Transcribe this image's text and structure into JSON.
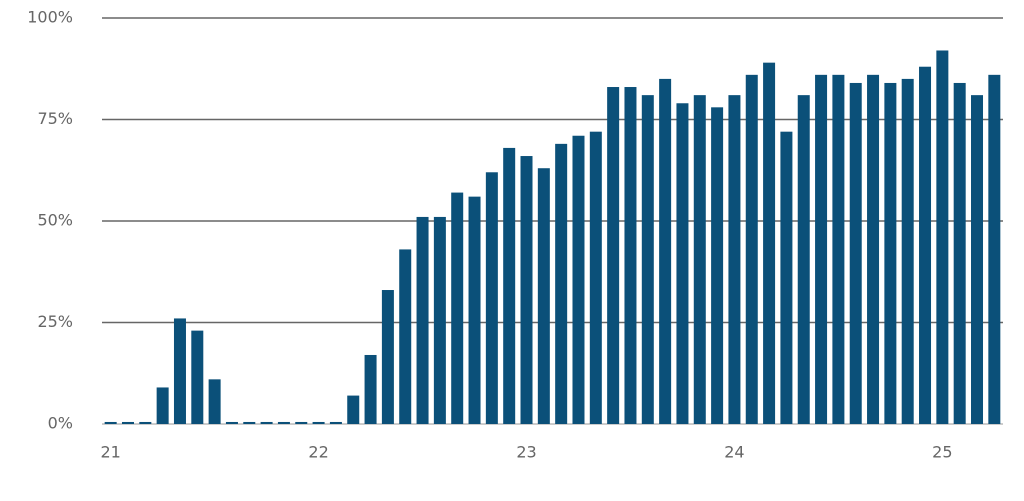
{
  "chart_data": {
    "type": "bar",
    "categories": [
      "21",
      null,
      null,
      null,
      null,
      null,
      null,
      null,
      null,
      null,
      null,
      null,
      "22",
      null,
      null,
      null,
      null,
      null,
      null,
      null,
      null,
      null,
      null,
      null,
      "23",
      null,
      null,
      null,
      null,
      null,
      null,
      null,
      null,
      null,
      null,
      null,
      "24",
      null,
      null,
      null,
      null,
      null,
      null,
      null,
      null,
      null,
      null,
      null,
      "25",
      null,
      null,
      null
    ],
    "values": [
      0.5,
      0.5,
      0.5,
      9,
      26,
      23,
      11,
      0.5,
      0.5,
      0.5,
      0.5,
      0.5,
      0.5,
      0.5,
      7,
      17,
      33,
      43,
      51,
      51,
      57,
      56,
      62,
      68,
      66,
      63,
      69,
      71,
      72,
      83,
      83,
      81,
      85,
      79,
      81,
      78,
      81,
      86,
      89,
      72,
      81,
      86,
      86,
      84,
      86,
      84,
      85,
      88,
      92,
      84,
      81,
      86
    ],
    "color": "#0b5079",
    "ylim": [
      0,
      100
    ],
    "yticks": [
      {
        "value": 0,
        "label": "0%"
      },
      {
        "value": 25,
        "label": "25%"
      },
      {
        "value": 50,
        "label": "50%"
      },
      {
        "value": 75,
        "label": "75%"
      },
      {
        "value": 100,
        "label": "100%"
      }
    ],
    "grid": true
  }
}
